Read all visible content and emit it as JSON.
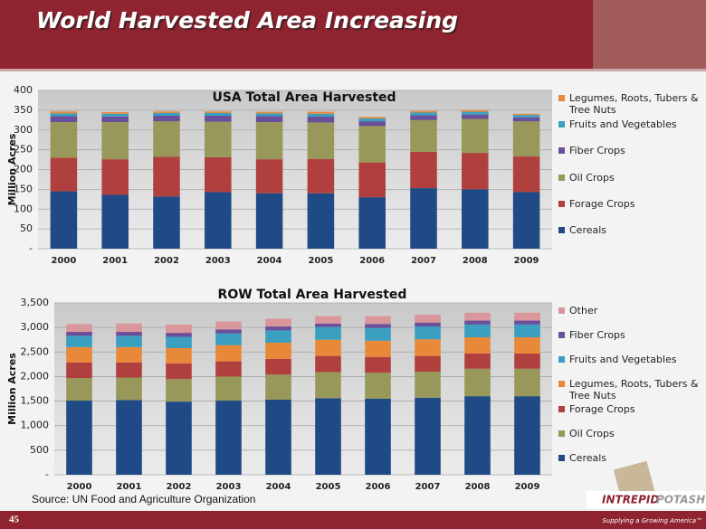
{
  "title": "World Harvested Area Increasing",
  "chart_data": [
    {
      "type": "bar",
      "stacked": true,
      "title": "USA Total Area Harvested",
      "y_label": "Million Acres",
      "categories": [
        "2000",
        "2001",
        "2002",
        "2003",
        "2004",
        "2005",
        "2006",
        "2007",
        "2008",
        "2009"
      ],
      "ylim": [
        0,
        400
      ],
      "yticks": [
        {
          "value": 0,
          "label": "-"
        },
        50,
        100,
        150,
        200,
        250,
        300,
        350,
        400
      ],
      "grid": true,
      "legend": "right",
      "series": [
        {
          "name": "Cereals",
          "color": "#1f4a86",
          "values": [
            145,
            136,
            132,
            143,
            140,
            140,
            130,
            153,
            150,
            143
          ]
        },
        {
          "name": "Forage Crops",
          "color": "#b0403e",
          "values": [
            85,
            90,
            100,
            88,
            86,
            87,
            88,
            92,
            92,
            90
          ]
        },
        {
          "name": "Oil Crops",
          "color": "#98985a",
          "values": [
            90,
            94,
            90,
            90,
            94,
            92,
            92,
            80,
            86,
            89
          ]
        },
        {
          "name": "Fiber Crops",
          "color": "#6a4f9a",
          "values": [
            15,
            14,
            14,
            15,
            15,
            15,
            12,
            12,
            11,
            10
          ]
        },
        {
          "name": "Fruits and Vegetables",
          "color": "#3a9fc0",
          "values": [
            7,
            7,
            7,
            7,
            7,
            7,
            7,
            7,
            7,
            6
          ]
        },
        {
          "name": "Legumes, Roots, Tubers & Tree Nuts",
          "color": "#e8893a",
          "values": [
            5,
            4,
            4,
            4,
            4,
            5,
            4,
            4,
            4,
            3
          ]
        }
      ]
    },
    {
      "type": "bar",
      "stacked": true,
      "title": "ROW Total Area Harvested",
      "y_label": "Million Acres",
      "categories": [
        "2000",
        "2001",
        "2002",
        "2003",
        "2004",
        "2005",
        "2006",
        "2007",
        "2008",
        "2009"
      ],
      "ylim": [
        0,
        3500
      ],
      "yticks": [
        {
          "value": 0,
          "label": "-"
        },
        500,
        {
          "value": 1000,
          "label": "1,000"
        },
        {
          "value": 1500,
          "label": "1,500"
        },
        {
          "value": 2000,
          "label": "2,000"
        },
        {
          "value": 2500,
          "label": "2,500"
        },
        {
          "value": 3000,
          "label": "3,000"
        },
        {
          "value": 3500,
          "label": "3,500"
        }
      ],
      "grid": true,
      "legend": "right",
      "series": [
        {
          "name": "Cereals",
          "color": "#1f4a86",
          "values": [
            1510,
            1520,
            1490,
            1510,
            1530,
            1560,
            1550,
            1570,
            1600,
            1600
          ]
        },
        {
          "name": "Oil Crops",
          "color": "#98985a",
          "values": [
            460,
            460,
            460,
            490,
            510,
            530,
            530,
            530,
            560,
            560
          ]
        },
        {
          "name": "Forage Crops",
          "color": "#b0403e",
          "values": [
            320,
            310,
            320,
            310,
            320,
            330,
            320,
            320,
            310,
            310
          ]
        },
        {
          "name": "Legumes, Roots, Tubers & Tree Nuts",
          "color": "#e8893a",
          "values": [
            310,
            310,
            310,
            330,
            330,
            330,
            330,
            340,
            330,
            330
          ]
        },
        {
          "name": "Fruits and Vegetables",
          "color": "#3a9fc0",
          "values": [
            230,
            230,
            230,
            240,
            250,
            260,
            260,
            260,
            260,
            260
          ]
        },
        {
          "name": "Fiber Crops",
          "color": "#6a4f9a",
          "values": [
            80,
            80,
            80,
            80,
            80,
            70,
            80,
            80,
            80,
            80
          ]
        },
        {
          "name": "Other",
          "color": "#d9969b",
          "values": [
            160,
            170,
            170,
            160,
            160,
            150,
            160,
            160,
            160,
            160
          ]
        }
      ]
    }
  ],
  "source": "Source: UN Food and Agriculture Organization",
  "page_number": "45",
  "logo": {
    "part1": "INTREPID",
    "part2": "POTASH",
    "tagline": "Supplying a Growing America™"
  }
}
